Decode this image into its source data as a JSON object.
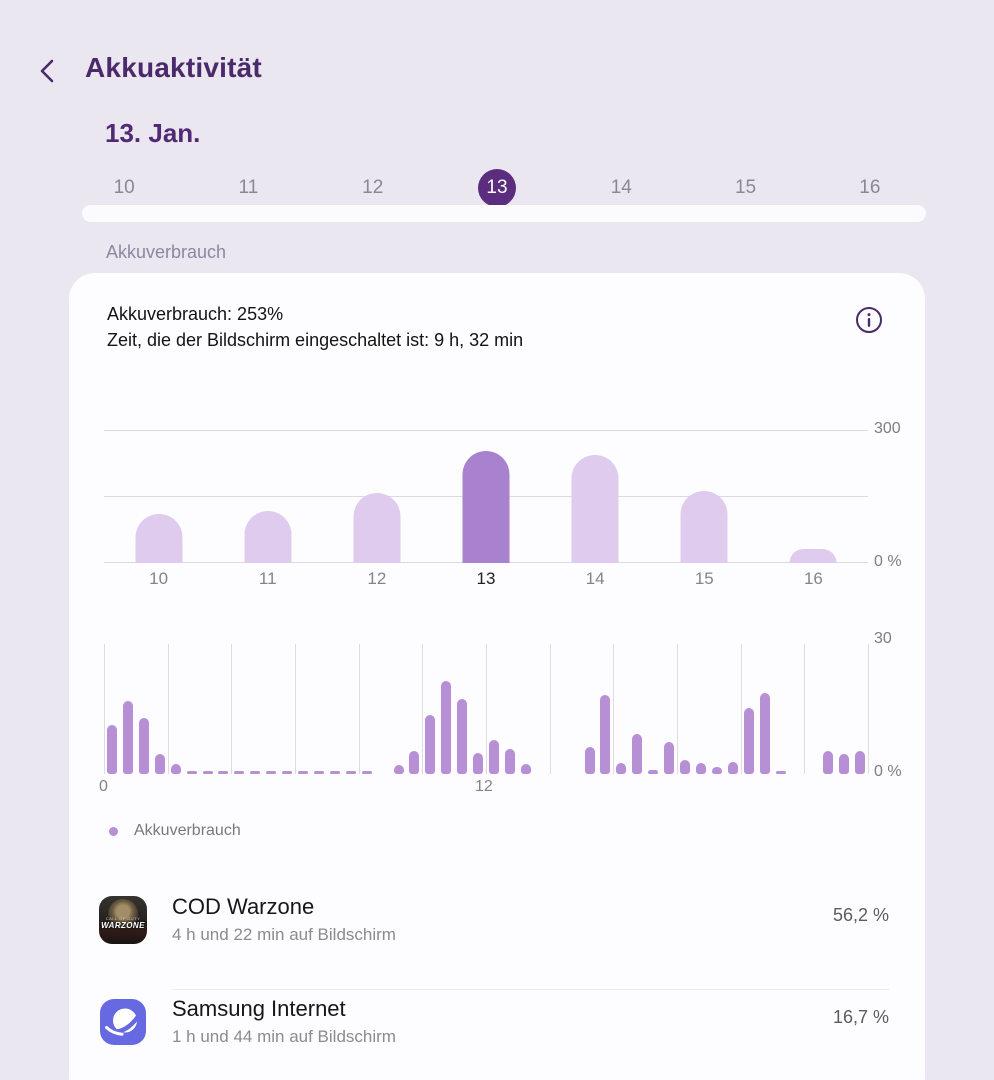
{
  "header": {
    "title": "Akkuaktivität"
  },
  "date_selector": {
    "current_date": "13. Jan.",
    "days": [
      "10",
      "11",
      "12",
      "13",
      "14",
      "15",
      "16"
    ],
    "selected_index": 3
  },
  "section_label": "Akkuverbrauch",
  "usage_card": {
    "summary_line1": "Akkuverbrauch: 253%",
    "summary_line2": "Zeit, die der Bildschirm eingeschaltet ist: 9 h, 32 min"
  },
  "chart_data": [
    {
      "id": "daily-usage",
      "type": "bar",
      "categories": [
        "10",
        "11",
        "12",
        "13",
        "14",
        "15",
        "16"
      ],
      "values": [
        111,
        118,
        159,
        253,
        243,
        162,
        32
      ],
      "highlight_index": 3,
      "ylim": [
        0,
        300
      ],
      "yticks": [
        "300",
        "0 %"
      ],
      "grid": "horizontal",
      "unit": "%"
    },
    {
      "id": "hourly-usage",
      "type": "bar",
      "slot_minutes": 30,
      "x_hours": [
        0,
        24
      ],
      "values": [
        11.4,
        16.8,
        12.9,
        4.7,
        2.4,
        0.5,
        0.4,
        0.4,
        0.4,
        0.4,
        0.4,
        0.4,
        0.4,
        0.4,
        0.4,
        0.4,
        0.4,
        0,
        2,
        5.3,
        13.7,
        21.5,
        17.3,
        4.9,
        7.8,
        5.8,
        2.3,
        0,
        0,
        0,
        6.2,
        18.2,
        2.6,
        9.2,
        0.9,
        7.3,
        3.3,
        2.6,
        1.7,
        2.8,
        15.3,
        18.7,
        0.3,
        0,
        0,
        5.3,
        4.5,
        5.4
      ],
      "ylim": [
        0,
        30
      ],
      "yticks": [
        "30",
        "0 %"
      ],
      "xticks": [
        {
          "label": "0",
          "hour": 0
        },
        {
          "label": "12",
          "hour": 12
        }
      ],
      "grid": "vertical",
      "unit": "%"
    }
  ],
  "legend": {
    "label": "Akkuverbrauch"
  },
  "apps": [
    {
      "name": "COD Warzone",
      "screen_time": "4 h und 22 min auf Bildschirm",
      "percent": "56,2 %",
      "icon": "cod-warzone-app-icon",
      "icon_text": "WARZONE",
      "icon_subtext": "CALL OF DUTY"
    },
    {
      "name": "Samsung Internet",
      "screen_time": "1 h und 44 min auf Bildschirm",
      "percent": "16,7 %",
      "icon": "samsung-internet-app-icon"
    }
  ],
  "colors": {
    "background": "#ebe7f1",
    "card": "#fdfcfe",
    "accent_dark": "#4b2a6a",
    "day_selected": "#5c2d7e",
    "bar_light": "#decbee",
    "bar_highlight": "#a982cf",
    "bar_hourly": "#b78fd4"
  }
}
